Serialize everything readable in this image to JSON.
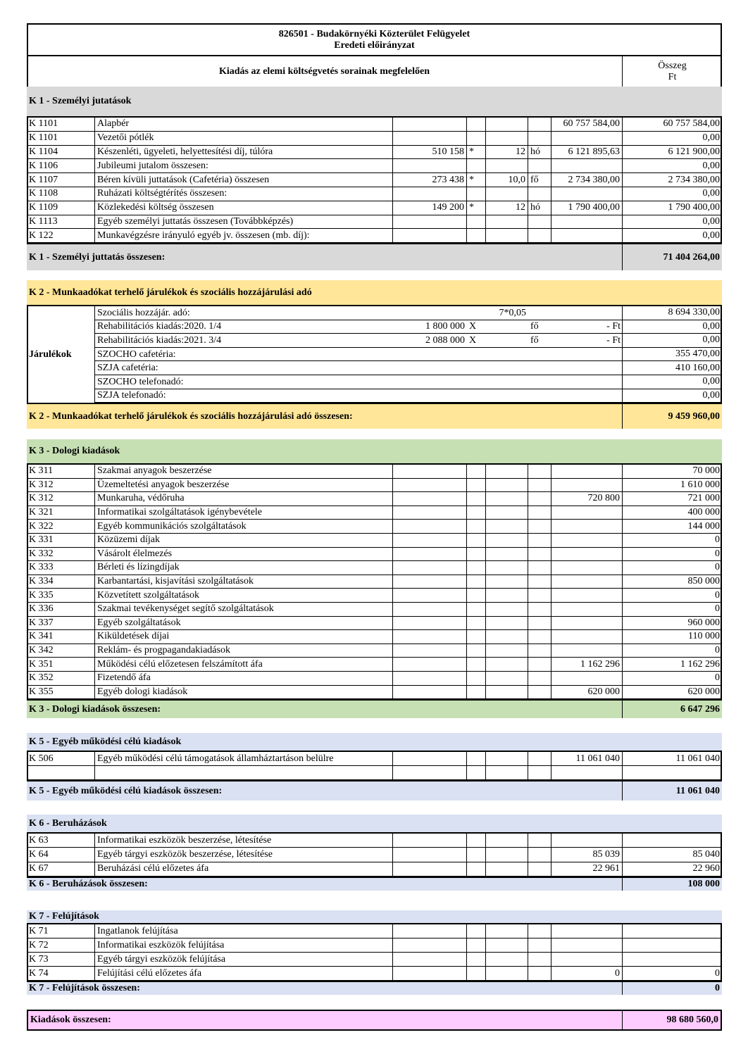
{
  "header": {
    "title_line1": "826501 - Budakörnyéki Közterület Felügyelet",
    "title_line2": "Eredeti előirányzat",
    "column_header": "Kiadás az elemi költségvetés sorainak megfelelően",
    "amount_header_1": "Összeg",
    "amount_header_2": "Ft"
  },
  "sections": [
    {
      "title": "K 1 - Személyi jutatások",
      "color": "#d9d9d9",
      "rows": [
        [
          "K 1101",
          "Alapbér",
          null,
          null,
          null,
          null,
          "60 757 584,00",
          "60 757 584,00"
        ],
        [
          "K 1101",
          "Vezetői pótlék",
          null,
          null,
          null,
          null,
          null,
          "0,00"
        ],
        [
          "K 1104",
          "Készenléti, ügyeleti, helyettesítési díj, túlóra",
          "510 158",
          "*",
          "12",
          "hó",
          "6 121 895,63",
          "6 121 900,00"
        ],
        [
          "K 1106",
          "Jubileumi jutalom összesen:",
          null,
          null,
          null,
          null,
          null,
          "0,00"
        ],
        [
          "K 1107",
          "Béren kívüli juttatások (Cafetéria) összesen",
          "273 438",
          "*",
          "10,0",
          "fő",
          "2 734 380,00",
          "2 734 380,00"
        ],
        [
          "K 1108",
          "Ruházati költségtérítés összesen:",
          null,
          null,
          null,
          null,
          null,
          "0,00"
        ],
        [
          "K 1109",
          "Közlekedési költség összesen",
          "149 200",
          "*",
          "12",
          "hó",
          "1 790 400,00",
          "1 790 400,00"
        ],
        [
          "K 1113",
          "Egyéb személyi juttatás összesen (Továbbképzés)",
          null,
          null,
          null,
          null,
          null,
          "0,00"
        ],
        [
          "K 122",
          "Munkavégzésre irányuló egyéb jv. összesen (mb. díj):",
          null,
          null,
          null,
          null,
          null,
          "0,00"
        ]
      ],
      "total_label": "K 1 - Személyi juttatás összesen:",
      "total_value": "71 404 264,00"
    },
    {
      "title": "K 2 - Munkaadókat terhelő járulékok és szociális hozzájárulási adó",
      "color": "#ffe699",
      "group_label": "Járulékok",
      "rows": [
        [
          null,
          "Szociális hozzájár. adó:",
          null,
          null,
          "7*0,05",
          null,
          null,
          "8 694 330,00"
        ],
        [
          null,
          "Rehabilitációs kiadás:2020. 1/4",
          "1 800 000",
          "X",
          null,
          "fő",
          "-      Ft",
          "0,00"
        ],
        [
          null,
          "Rehabilitációs kiadás:2021. 3/4",
          "2 088 000",
          "X",
          null,
          "fő",
          "-      Ft",
          "0,00"
        ],
        [
          null,
          "SZOCHO  cafetéria:",
          null,
          null,
          null,
          null,
          null,
          "355 470,00"
        ],
        [
          null,
          "SZJA cafetéria:",
          null,
          null,
          null,
          null,
          null,
          "410 160,00"
        ],
        [
          null,
          "SZOCHO  telefonadó:",
          null,
          null,
          null,
          null,
          null,
          "0,00"
        ],
        [
          null,
          "SZJA  telefonadó:",
          null,
          null,
          null,
          null,
          null,
          "0,00"
        ]
      ],
      "total_label": "K 2 - Munkaadókat terhelő járulékok és szociális hozzájárulási adó összesen:",
      "total_value": "9 459 960,00"
    },
    {
      "title": "K 3 - Dologi kiadások",
      "color": "#c6e0b4",
      "rows": [
        [
          "K 311",
          "Szakmai anyagok beszerzése",
          null,
          null,
          null,
          null,
          null,
          "70 000"
        ],
        [
          "K 312",
          "Üzemeltetési anyagok beszerzése",
          null,
          null,
          null,
          null,
          null,
          "1 610 000"
        ],
        [
          "K 312",
          "Munkaruha, védőruha",
          null,
          null,
          null,
          null,
          "720 800",
          "721 000"
        ],
        [
          "K 321",
          "Informatikai szolgáltatások igénybevétele",
          null,
          null,
          null,
          null,
          null,
          "400 000"
        ],
        [
          "K 322",
          "Egyéb kommunikációs szolgáltatások",
          null,
          null,
          null,
          null,
          null,
          "144 000"
        ],
        [
          "K 331",
          "Közüzemi díjak",
          null,
          null,
          null,
          null,
          null,
          "0"
        ],
        [
          "K 332",
          "Vásárolt élelmezés",
          null,
          null,
          null,
          null,
          null,
          "0"
        ],
        [
          "K 333",
          "Bérleti és lízingdíjak",
          null,
          null,
          null,
          null,
          null,
          "0"
        ],
        [
          "K 334",
          "Karbantartási, kisjavítási szolgáltatások",
          null,
          null,
          null,
          null,
          null,
          "850 000"
        ],
        [
          "K 335",
          "Közvetített szolgáltatások",
          null,
          null,
          null,
          null,
          null,
          "0"
        ],
        [
          "K 336",
          "Szakmai tevékenységet segítő szolgáltatások",
          null,
          null,
          null,
          null,
          null,
          "0"
        ],
        [
          "K 337",
          "Egyéb szolgáltatások",
          null,
          null,
          null,
          null,
          null,
          "960 000"
        ],
        [
          "K 341",
          "Kiküldetések díjai",
          null,
          null,
          null,
          null,
          null,
          "110 000"
        ],
        [
          "K 342",
          "Reklám- és progpagandakiadások",
          null,
          null,
          null,
          null,
          null,
          "0"
        ],
        [
          "K 351",
          "Működési célú előzetesen felszámított áfa",
          null,
          null,
          null,
          null,
          "1 162 296",
          "1 162 296"
        ],
        [
          "K 352",
          "Fizetendő áfa",
          null,
          null,
          null,
          null,
          null,
          "0"
        ],
        [
          "K 355",
          "Egyéb dologi kiadások",
          null,
          null,
          null,
          null,
          "620 000",
          "620 000"
        ]
      ],
      "total_label": "K 3 - Dologi kiadások összesen:",
      "total_value": "6 647 296"
    },
    {
      "title": "K 5 - Egyéb működési célú kiadások",
      "color": "#d9e1f2",
      "rows": [
        [
          "K 506",
          "Egyéb működési célú támogatások államháztartáson belülre",
          null,
          null,
          null,
          null,
          "11 061 040",
          "11 061 040"
        ],
        [
          null,
          null,
          null,
          null,
          null,
          null,
          null,
          null
        ]
      ],
      "total_label": "K 5 - Egyéb működési célú kiadások összesen:",
      "total_value": "11 061 040"
    },
    {
      "title": "K 6 - Beruházások",
      "color": "#d9e1f2",
      "rows": [
        [
          "K 63",
          "Informatikai eszközök beszerzése, létesítése",
          null,
          null,
          null,
          null,
          null,
          null
        ],
        [
          "K 64",
          "Egyéb tárgyi eszközök beszerzése, létesítése",
          null,
          null,
          null,
          null,
          "85 039",
          "85 040"
        ],
        [
          "K 67",
          "Beruházási célú előzetes áfa",
          null,
          null,
          null,
          null,
          "22 961",
          "22 960"
        ]
      ],
      "total_label": "K 6 - Beruházások összesen:",
      "total_value": "108 000"
    },
    {
      "title": "K 7 - Felújítások",
      "color": "#d9e1f2",
      "rows": [
        [
          "K 71",
          "Ingatlanok felújítása",
          null,
          null,
          null,
          null,
          null,
          null
        ],
        [
          "K 72",
          "Informatikai eszközök felújítása",
          null,
          null,
          null,
          null,
          null,
          null
        ],
        [
          "K 73",
          "Egyéb tárgyi eszközök felújítása",
          null,
          null,
          null,
          null,
          null,
          null
        ],
        [
          "K 74",
          "Felújítási célú előzetes áfa",
          null,
          null,
          null,
          null,
          "0",
          "0"
        ]
      ],
      "total_label": "K 7 - Felújítások összesen:",
      "total_value": "0"
    }
  ],
  "grand_total": {
    "label": "Kiadások összesen:",
    "value": "98 680 560,0",
    "color": "#ffccff"
  }
}
